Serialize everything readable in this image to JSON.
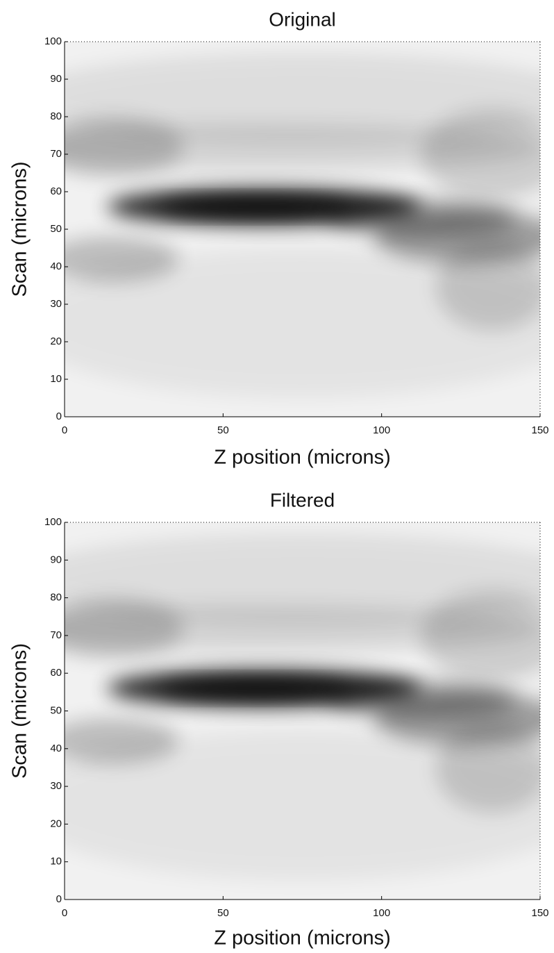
{
  "chart_data": [
    {
      "type": "heatmap",
      "title": "Original",
      "xlabel": "Z position (microns)",
      "ylabel": "Scan (microns)",
      "xlim": [
        0,
        150
      ],
      "ylim": [
        0,
        100
      ],
      "xticks": [
        0,
        50,
        100,
        150
      ],
      "yticks": [
        0,
        10,
        20,
        30,
        40,
        50,
        60,
        70,
        80,
        90,
        100
      ],
      "colormap": "gray"
    },
    {
      "type": "heatmap",
      "title": "Filtered",
      "xlabel": "Z position (microns)",
      "ylabel": "Scan (microns)",
      "xlim": [
        0,
        150
      ],
      "ylim": [
        0,
        100
      ],
      "xticks": [
        0,
        50,
        100,
        150
      ],
      "yticks": [
        0,
        10,
        20,
        30,
        40,
        50,
        60,
        70,
        80,
        90,
        100
      ],
      "colormap": "gray"
    }
  ]
}
